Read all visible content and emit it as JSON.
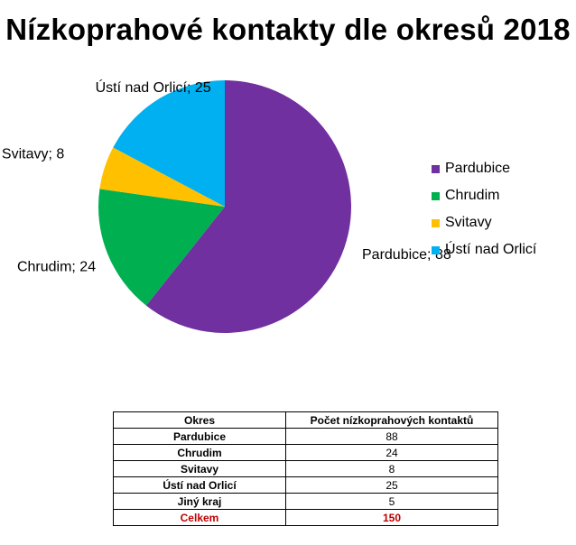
{
  "title": "Nízkoprahové kontakty dle okresů 2018",
  "chart_data": {
    "type": "pie",
    "title": "Nízkoprahové kontakty dle okresů 2018",
    "categories": [
      "Pardubice",
      "Chrudim",
      "Svitavy",
      "Ústí nad Orlicí"
    ],
    "values": [
      88,
      24,
      8,
      25
    ],
    "colors": [
      "#7030a0",
      "#00b050",
      "#ffc000",
      "#00b0f0"
    ],
    "data_labels": [
      "Pardubice; 88",
      "Chrudim; 24",
      "Svitavy; 8",
      "Ústí nad Orlicí; 25"
    ],
    "legend_position": "right",
    "start_angle_deg": 0,
    "direction": "clockwise"
  },
  "table": {
    "headers": [
      "Okres",
      "Počet nízkoprahových kontaktů"
    ],
    "rows": [
      [
        "Pardubice",
        "88"
      ],
      [
        "Chrudim",
        "24"
      ],
      [
        "Svitavy",
        "8"
      ],
      [
        "Ústí nad Orlicí",
        "25"
      ],
      [
        "Jiný kraj",
        "5"
      ]
    ],
    "total": [
      "Celkem",
      "150"
    ],
    "total_color": "#c00000"
  }
}
